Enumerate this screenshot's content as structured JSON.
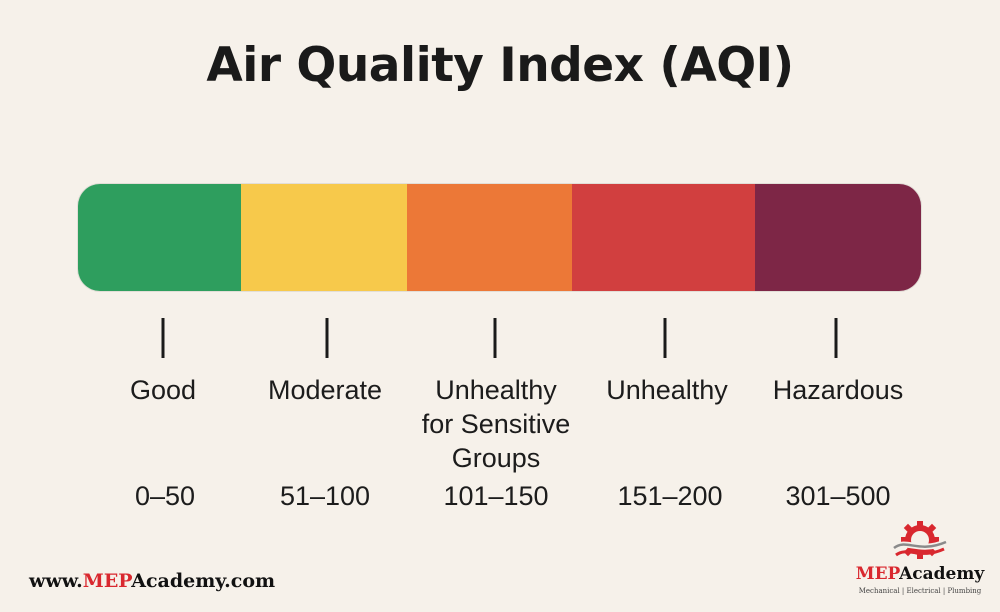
{
  "title": "Air Quality Index (AQI)",
  "categories": [
    {
      "label": "Good",
      "range": "0–50",
      "color": "#2e9e5e"
    },
    {
      "label": "Moderate",
      "range": "51–100",
      "color": "#f7c94b"
    },
    {
      "label": "Unhealthy\nfor Sensitive\nGroups",
      "range": "101–150",
      "color": "#ec7837"
    },
    {
      "label": "Unhealthy",
      "range": "151–200",
      "color": "#d13f3f"
    },
    {
      "label": "Hazardous",
      "range": "301–500",
      "color": "#7d2646"
    }
  ],
  "footer": {
    "website_prefix": "www.",
    "website_brand": "MEP",
    "website_suffix": "Academy.com"
  },
  "logo": {
    "name_accent": "MEP",
    "name_rest": "Academy",
    "tagline": "Mechanical | Electrical | Plumbing",
    "icon": "gear-wave-icon"
  }
}
